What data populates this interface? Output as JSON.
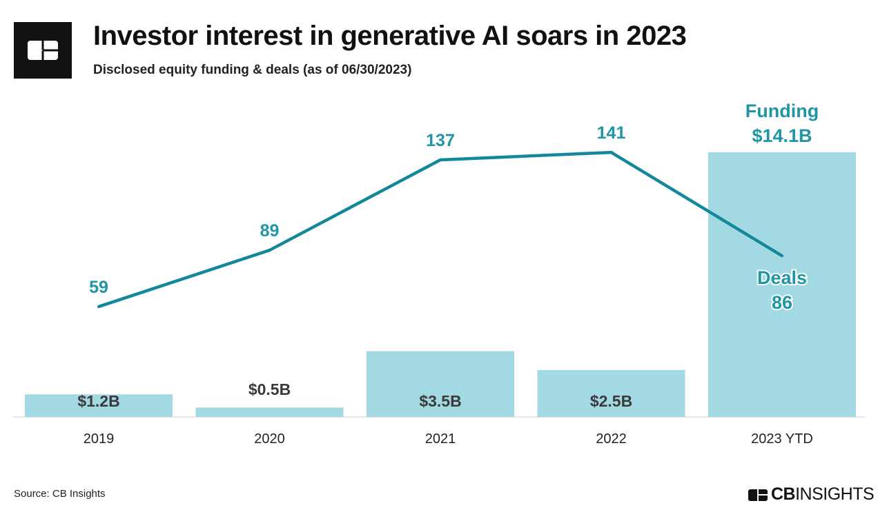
{
  "header": {
    "title": "Investor interest in generative AI soars in 2023",
    "subtitle": "Disclosed equity funding & deals (as of 06/30/2023)"
  },
  "footer": {
    "source": "Source: CB Insights",
    "brand_bold": "CB",
    "brand_light": "INSIGHTS"
  },
  "colors": {
    "bar": "#a3d9e2",
    "line": "#13889a",
    "label": "#1f95a6",
    "bar_label": "#3a3a3a"
  },
  "chart_data": {
    "type": "bar+line",
    "categories": [
      "2019",
      "2020",
      "2021",
      "2022",
      "2023 YTD"
    ],
    "series": [
      {
        "name": "Funding",
        "type": "bar",
        "unit": "$B",
        "values": [
          1.2,
          0.5,
          3.5,
          2.5,
          14.1
        ],
        "labels": [
          "$1.2B",
          "$0.5B",
          "$3.5B",
          "$2.5B",
          "$14.1B"
        ]
      },
      {
        "name": "Deals",
        "type": "line",
        "values": [
          59,
          89,
          137,
          141,
          86
        ],
        "labels": [
          "59",
          "89",
          "137",
          "141",
          "86"
        ]
      }
    ],
    "legend_annotations": {
      "funding": "Funding",
      "deals": "Deals"
    },
    "ylim_funding": [
      0,
      22.2
    ],
    "ylim_deals": [
      0,
      222
    ]
  }
}
